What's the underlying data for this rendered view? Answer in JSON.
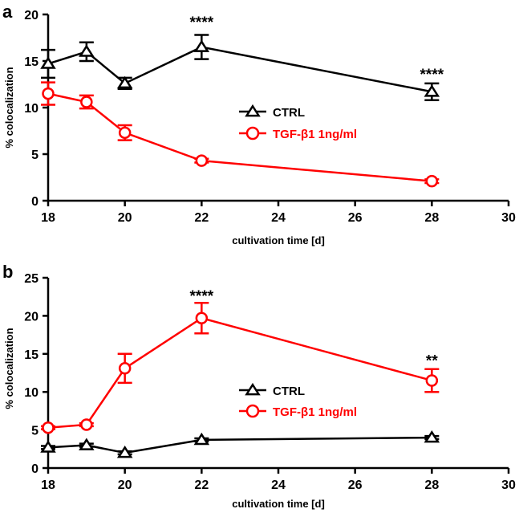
{
  "colors": {
    "ctrl": "#000000",
    "tgf": "#ff0000",
    "axis": "#000000"
  },
  "chart_data": [
    {
      "panel": "a",
      "type": "line",
      "xlabel": "cultivation time [d]",
      "ylabel": "% colocalization",
      "xlim": [
        18,
        30
      ],
      "ylim": [
        0,
        20
      ],
      "xticks": [
        18,
        20,
        22,
        24,
        26,
        28,
        30
      ],
      "yticks": [
        0,
        5,
        10,
        15,
        20
      ],
      "legend_position": "center-right",
      "grid": false,
      "series": [
        {
          "name": "CTRL",
          "marker": "triangle",
          "color": "#000000",
          "x": [
            18,
            19,
            20,
            22,
            28
          ],
          "y": [
            14.7,
            16.0,
            12.6,
            16.5,
            11.7
          ],
          "err": [
            1.5,
            1.0,
            0.6,
            1.3,
            0.9
          ]
        },
        {
          "name": "TGF-β1 1ng/ml",
          "marker": "circle",
          "color": "#ff0000",
          "x": [
            18,
            19,
            20,
            22,
            28
          ],
          "y": [
            11.5,
            10.6,
            7.3,
            4.3,
            2.1
          ],
          "err": [
            1.2,
            0.7,
            0.8,
            0.2,
            0.2
          ]
        }
      ],
      "annotations": [
        {
          "x": 22,
          "y": 19.5,
          "text": "****"
        },
        {
          "x": 28,
          "y": 13.9,
          "text": "****"
        }
      ]
    },
    {
      "panel": "b",
      "type": "line",
      "xlabel": "cultivation time [d]",
      "ylabel": "% colocalization",
      "xlim": [
        18,
        30
      ],
      "ylim": [
        0,
        25
      ],
      "xticks": [
        18,
        20,
        22,
        24,
        26,
        28,
        30
      ],
      "yticks": [
        0,
        5,
        10,
        15,
        20,
        25
      ],
      "legend_position": "lower-center",
      "grid": false,
      "series": [
        {
          "name": "CTRL",
          "marker": "triangle",
          "color": "#000000",
          "x": [
            18,
            19,
            20,
            22,
            28
          ],
          "y": [
            2.7,
            3.0,
            2.0,
            3.7,
            4.0
          ],
          "err": [
            0.2,
            0.2,
            0.2,
            0.2,
            0.2
          ]
        },
        {
          "name": "TGF-β1 1ng/ml",
          "marker": "circle",
          "color": "#ff0000",
          "x": [
            18,
            19,
            20,
            22,
            28
          ],
          "y": [
            5.3,
            5.7,
            13.1,
            19.7,
            11.5
          ],
          "err": [
            0.2,
            0.2,
            1.9,
            2.0,
            1.5
          ]
        }
      ],
      "annotations": [
        {
          "x": 22,
          "y": 23.0,
          "text": "****"
        },
        {
          "x": 28,
          "y": 14.5,
          "text": "**"
        }
      ]
    }
  ]
}
